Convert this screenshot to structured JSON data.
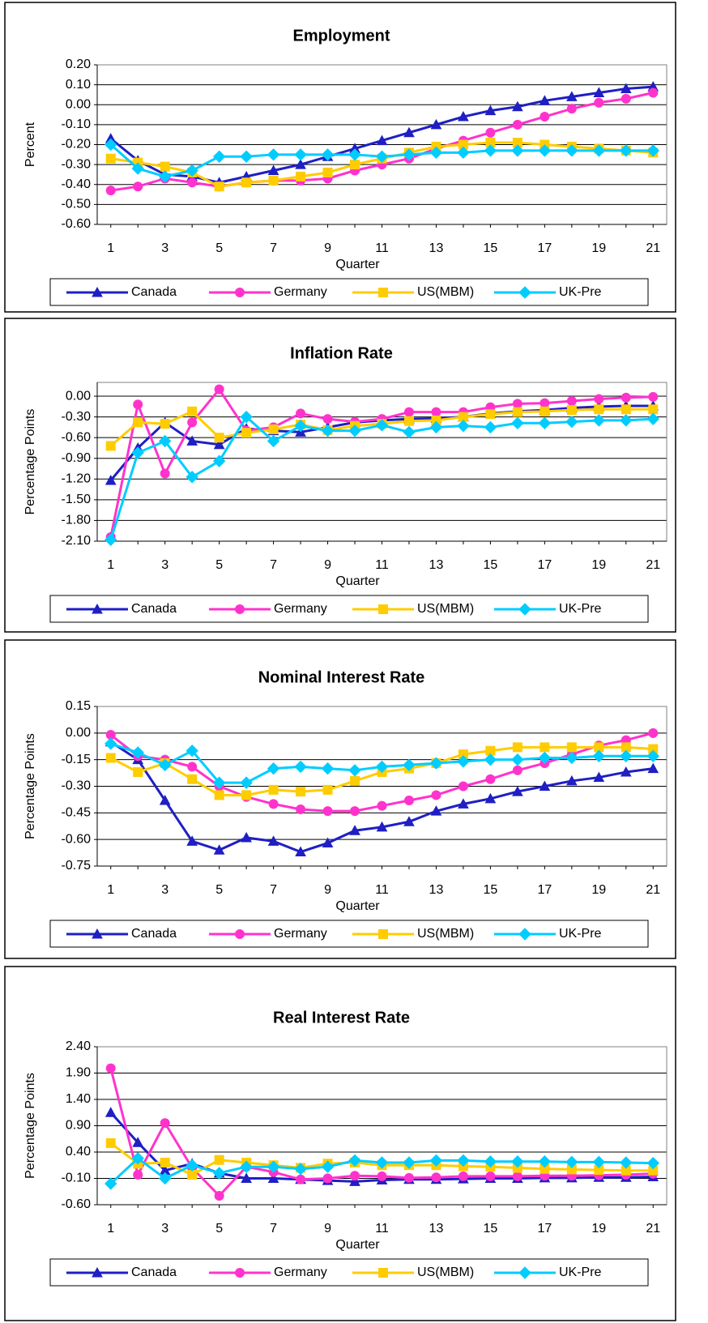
{
  "chart_data": [
    {
      "type": "line",
      "title": "Employment",
      "y_label": "Percent",
      "x_label": "Quarter",
      "x": [
        1,
        2,
        3,
        4,
        5,
        6,
        7,
        8,
        9,
        10,
        11,
        12,
        13,
        14,
        15,
        16,
        17,
        18,
        19,
        20,
        21
      ],
      "xlim": [
        0.5,
        21.5
      ],
      "xticks": [
        1,
        3,
        5,
        7,
        9,
        11,
        13,
        15,
        17,
        19,
        21
      ],
      "ylim": [
        -0.6,
        0.2
      ],
      "yticks": [
        {
          "value": 0.2,
          "label": "0.20"
        },
        {
          "value": 0.1,
          "label": "0.10"
        },
        {
          "value": 0,
          "label": "0.00"
        },
        {
          "value": -0.1,
          "label": "-0.10"
        },
        {
          "value": -0.2,
          "label": "-0.20"
        },
        {
          "value": -0.3,
          "label": "-0.30"
        },
        {
          "value": -0.4,
          "label": "-0.40"
        },
        {
          "value": -0.5,
          "label": "-0.50"
        },
        {
          "value": -0.6,
          "label": "-0.60"
        }
      ],
      "grid": true,
      "series": [
        {
          "name": "Canada",
          "color": "#1f1fc4",
          "marker": "triangle",
          "values": [
            -0.17,
            -0.28,
            -0.35,
            -0.36,
            -0.39,
            -0.36,
            -0.33,
            -0.3,
            -0.26,
            -0.22,
            -0.18,
            -0.14,
            -0.1,
            -0.06,
            -0.03,
            -0.01,
            0.02,
            0.04,
            0.06,
            0.08,
            0.09
          ]
        },
        {
          "name": "Germany",
          "color": "#ff33cc",
          "marker": "circle",
          "values": [
            -0.43,
            -0.41,
            -0.37,
            -0.39,
            -0.41,
            -0.39,
            -0.38,
            -0.38,
            -0.37,
            -0.33,
            -0.3,
            -0.27,
            -0.22,
            -0.18,
            -0.14,
            -0.1,
            -0.06,
            -0.02,
            0.01,
            0.03,
            0.06
          ]
        },
        {
          "name": "US(MBM)",
          "color": "#ffcc00",
          "marker": "square",
          "values": [
            -0.27,
            -0.29,
            -0.31,
            -0.34,
            -0.41,
            -0.39,
            -0.38,
            -0.36,
            -0.34,
            -0.3,
            -0.27,
            -0.24,
            -0.21,
            -0.2,
            -0.19,
            -0.19,
            -0.2,
            -0.21,
            -0.22,
            -0.23,
            -0.24
          ]
        },
        {
          "name": "UK-Pre",
          "color": "#00ccff",
          "marker": "diamond",
          "values": [
            -0.2,
            -0.32,
            -0.36,
            -0.33,
            -0.26,
            -0.26,
            -0.25,
            -0.25,
            -0.25,
            -0.25,
            -0.26,
            -0.25,
            -0.24,
            -0.24,
            -0.23,
            -0.23,
            -0.23,
            -0.23,
            -0.23,
            -0.23,
            -0.23
          ]
        }
      ]
    },
    {
      "type": "line",
      "title": "Inflation Rate",
      "y_label": "Percentage Points",
      "x_label": "Quarter",
      "x": [
        1,
        2,
        3,
        4,
        5,
        6,
        7,
        8,
        9,
        10,
        11,
        12,
        13,
        14,
        15,
        16,
        17,
        18,
        19,
        20,
        21
      ],
      "xlim": [
        0.5,
        21.5
      ],
      "xticks": [
        1,
        3,
        5,
        7,
        9,
        11,
        13,
        15,
        17,
        19,
        21
      ],
      "ylim": [
        -2.1,
        0.2
      ],
      "yticks": [
        {
          "value": 0,
          "label": "0.00"
        },
        {
          "value": -0.3,
          "label": "-0.30"
        },
        {
          "value": -0.6,
          "label": "-0.60"
        },
        {
          "value": -0.9,
          "label": "-0.90"
        },
        {
          "value": -1.2,
          "label": "-1.20"
        },
        {
          "value": -1.5,
          "label": "-1.50"
        },
        {
          "value": -1.8,
          "label": "-1.80"
        },
        {
          "value": -2.1,
          "label": "-2.10"
        }
      ],
      "grid": true,
      "series": [
        {
          "name": "Canada",
          "color": "#1f1fc4",
          "marker": "triangle",
          "values": [
            -1.22,
            -0.75,
            -0.38,
            -0.65,
            -0.7,
            -0.47,
            -0.5,
            -0.52,
            -0.45,
            -0.38,
            -0.35,
            -0.33,
            -0.32,
            -0.3,
            -0.25,
            -0.22,
            -0.2,
            -0.17,
            -0.15,
            -0.14,
            -0.14
          ]
        },
        {
          "name": "Germany",
          "color": "#ff33cc",
          "marker": "circle",
          "values": [
            -2.04,
            -0.12,
            -1.12,
            -0.38,
            0.1,
            -0.5,
            -0.45,
            -0.25,
            -0.33,
            -0.37,
            -0.33,
            -0.23,
            -0.23,
            -0.23,
            -0.16,
            -0.11,
            -0.1,
            -0.07,
            -0.04,
            -0.02,
            -0.01
          ]
        },
        {
          "name": "US(MBM)",
          "color": "#ffcc00",
          "marker": "square",
          "values": [
            -0.72,
            -0.38,
            -0.4,
            -0.22,
            -0.6,
            -0.53,
            -0.48,
            -0.41,
            -0.49,
            -0.43,
            -0.4,
            -0.36,
            -0.35,
            -0.3,
            -0.26,
            -0.23,
            -0.22,
            -0.2,
            -0.19,
            -0.19,
            -0.19
          ]
        },
        {
          "name": "UK-Pre",
          "color": "#00ccff",
          "marker": "diamond",
          "values": [
            -2.08,
            -0.82,
            -0.65,
            -1.17,
            -0.94,
            -0.3,
            -0.65,
            -0.43,
            -0.5,
            -0.5,
            -0.42,
            -0.52,
            -0.45,
            -0.43,
            -0.45,
            -0.39,
            -0.39,
            -0.37,
            -0.35,
            -0.35,
            -0.33
          ]
        }
      ]
    },
    {
      "type": "line",
      "title": "Nominal Interest Rate",
      "y_label": "Percentage Points",
      "x_label": "Quarter",
      "x": [
        1,
        2,
        3,
        4,
        5,
        6,
        7,
        8,
        9,
        10,
        11,
        12,
        13,
        14,
        15,
        16,
        17,
        18,
        19,
        20,
        21
      ],
      "xlim": [
        0.5,
        21.5
      ],
      "xticks": [
        1,
        3,
        5,
        7,
        9,
        11,
        13,
        15,
        17,
        19,
        21
      ],
      "ylim": [
        -0.75,
        0.15
      ],
      "yticks": [
        {
          "value": 0.15,
          "label": "0.15"
        },
        {
          "value": 0,
          "label": "0.00"
        },
        {
          "value": -0.15,
          "label": "-0.15"
        },
        {
          "value": -0.3,
          "label": "-0.30"
        },
        {
          "value": -0.45,
          "label": "-0.45"
        },
        {
          "value": -0.6,
          "label": "-0.60"
        },
        {
          "value": -0.75,
          "label": "-0.75"
        }
      ],
      "grid": true,
      "series": [
        {
          "name": "Canada",
          "color": "#1f1fc4",
          "marker": "triangle",
          "values": [
            -0.05,
            -0.15,
            -0.38,
            -0.61,
            -0.66,
            -0.59,
            -0.61,
            -0.67,
            -0.62,
            -0.55,
            -0.53,
            -0.5,
            -0.44,
            -0.4,
            -0.37,
            -0.33,
            -0.3,
            -0.27,
            -0.25,
            -0.22,
            -0.2
          ]
        },
        {
          "name": "Germany",
          "color": "#ff33cc",
          "marker": "circle",
          "values": [
            -0.01,
            -0.13,
            -0.15,
            -0.19,
            -0.3,
            -0.36,
            -0.4,
            -0.43,
            -0.44,
            -0.44,
            -0.41,
            -0.38,
            -0.35,
            -0.3,
            -0.26,
            -0.21,
            -0.17,
            -0.12,
            -0.07,
            -0.04,
            0.0
          ]
        },
        {
          "name": "US(MBM)",
          "color": "#ffcc00",
          "marker": "square",
          "values": [
            -0.14,
            -0.22,
            -0.17,
            -0.26,
            -0.35,
            -0.35,
            -0.32,
            -0.33,
            -0.32,
            -0.27,
            -0.22,
            -0.2,
            -0.17,
            -0.12,
            -0.1,
            -0.08,
            -0.08,
            -0.08,
            -0.08,
            -0.08,
            -0.09
          ]
        },
        {
          "name": "UK-Pre",
          "color": "#00ccff",
          "marker": "diamond",
          "values": [
            -0.06,
            -0.11,
            -0.18,
            -0.1,
            -0.28,
            -0.28,
            -0.2,
            -0.19,
            -0.2,
            -0.21,
            -0.19,
            -0.18,
            -0.17,
            -0.16,
            -0.15,
            -0.15,
            -0.14,
            -0.14,
            -0.13,
            -0.13,
            -0.13
          ]
        }
      ]
    },
    {
      "type": "line",
      "title": "Real Interest Rate",
      "y_label": "Percentage Points",
      "x_label": "Quarter",
      "x": [
        1,
        2,
        3,
        4,
        5,
        6,
        7,
        8,
        9,
        10,
        11,
        12,
        13,
        14,
        15,
        16,
        17,
        18,
        19,
        20,
        21
      ],
      "xlim": [
        0.5,
        21.5
      ],
      "xticks": [
        1,
        3,
        5,
        7,
        9,
        11,
        13,
        15,
        17,
        19,
        21
      ],
      "ylim": [
        -0.6,
        2.4
      ],
      "yticks": [
        {
          "value": 2.4,
          "label": "2.40"
        },
        {
          "value": 1.9,
          "label": "1.90"
        },
        {
          "value": 1.4,
          "label": "1.40"
        },
        {
          "value": 0.9,
          "label": "0.90"
        },
        {
          "value": 0.4,
          "label": "0.40"
        },
        {
          "value": -0.1,
          "label": "-0.10"
        },
        {
          "value": -0.6,
          "label": "-0.60"
        }
      ],
      "grid": true,
      "series": [
        {
          "name": "Canada",
          "color": "#1f1fc4",
          "marker": "triangle",
          "values": [
            1.15,
            0.58,
            0.05,
            0.18,
            0.0,
            -0.1,
            -0.1,
            -0.12,
            -0.14,
            -0.16,
            -0.13,
            -0.12,
            -0.12,
            -0.11,
            -0.1,
            -0.1,
            -0.09,
            -0.09,
            -0.08,
            -0.08,
            -0.07
          ]
        },
        {
          "name": "Germany",
          "color": "#ff33cc",
          "marker": "circle",
          "values": [
            1.99,
            -0.03,
            0.95,
            0.1,
            -0.43,
            0.12,
            0.02,
            -0.12,
            -0.1,
            -0.05,
            -0.06,
            -0.09,
            -0.08,
            -0.06,
            -0.06,
            -0.06,
            -0.05,
            -0.05,
            -0.04,
            -0.03,
            -0.01
          ]
        },
        {
          "name": "US(MBM)",
          "color": "#ffcc00",
          "marker": "square",
          "values": [
            0.57,
            0.18,
            0.2,
            -0.03,
            0.25,
            0.2,
            0.15,
            0.1,
            0.18,
            0.2,
            0.15,
            0.15,
            0.15,
            0.13,
            0.12,
            0.1,
            0.08,
            0.07,
            0.06,
            0.05,
            0.05
          ]
        },
        {
          "name": "UK-Pre",
          "color": "#00ccff",
          "marker": "diamond",
          "values": [
            -0.2,
            0.28,
            -0.1,
            0.15,
            0.0,
            0.12,
            0.12,
            0.08,
            0.12,
            0.24,
            0.2,
            0.2,
            0.24,
            0.24,
            0.22,
            0.22,
            0.22,
            0.21,
            0.21,
            0.2,
            0.19
          ]
        }
      ]
    }
  ]
}
